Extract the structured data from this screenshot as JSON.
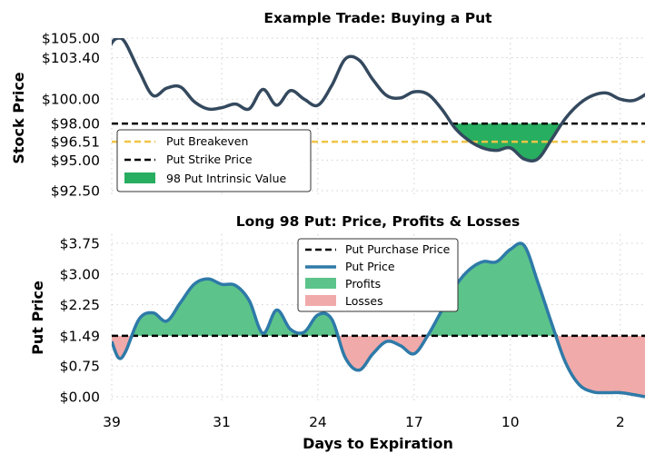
{
  "colors": {
    "stock_line": "#34495e",
    "put_line": "#2e7aa8",
    "intrinsic_fill": "#27ae60",
    "profit_fill": "#5cc48a",
    "loss_fill": "#f0aaaa",
    "breakeven": "#f0c445",
    "strike": "#000000",
    "purchase": "#000000"
  },
  "chart_data": [
    {
      "type": "line",
      "title": "Example Trade: Buying a Put",
      "xlabel": "",
      "ylabel": "Stock Price",
      "ylim": [
        92.5,
        105.0
      ],
      "yticks": [
        92.5,
        95.0,
        96.51,
        98.0,
        100.0,
        103.4,
        105.0
      ],
      "ytick_labels": [
        "$92.50",
        "$95.00",
        "$96.51",
        "$98.00",
        "$100.00",
        "$103.40",
        "$105.00"
      ],
      "x_direction": "days to expiration, decreasing left to right",
      "grid": true,
      "legend_position": "lower-left",
      "series": [
        {
          "name": "",
          "role": "stock_price",
          "x": [
            39.5,
            39,
            38.5,
            38,
            37,
            36,
            35,
            34,
            33,
            32,
            31,
            30,
            29,
            28,
            27,
            26,
            25,
            24,
            23,
            22,
            21,
            20,
            19,
            18,
            17,
            16,
            15,
            14,
            13,
            12,
            11,
            10,
            9,
            8,
            7,
            6,
            5,
            4,
            3,
            2,
            1,
            0
          ],
          "values": [
            103.2,
            104.6,
            105.0,
            104.6,
            102.3,
            100.3,
            100.9,
            101.0,
            99.8,
            99.2,
            99.3,
            99.6,
            99.2,
            100.8,
            99.5,
            100.7,
            100.0,
            99.5,
            101.1,
            103.3,
            103.2,
            101.6,
            100.3,
            100.1,
            100.6,
            100.4,
            99.2,
            97.6,
            96.6,
            96.0,
            95.8,
            96.0,
            95.1,
            95.1,
            96.7,
            98.4,
            99.6,
            100.3,
            100.5,
            100.0,
            99.9,
            100.5
          ]
        }
      ],
      "reference_lines": [
        {
          "name": "Put Breakeven",
          "value": 96.51
        },
        {
          "name": "Put Strike Price",
          "value": 98.0
        }
      ],
      "fill": {
        "name": "98 Put Intrinsic Value",
        "between": "stock price and 98 strike where stock price is below 98"
      }
    },
    {
      "type": "line",
      "title": "Long 98 Put: Price, Profits & Losses",
      "xlabel": "Days to Expiration",
      "ylabel": "Put Price",
      "ylim": [
        0.0,
        3.75
      ],
      "yticks": [
        0.0,
        0.75,
        1.49,
        2.25,
        3.0,
        3.75
      ],
      "ytick_labels": [
        "$0.00",
        "$0.75",
        "$1.49",
        "$2.25",
        "$3.00",
        "$3.75"
      ],
      "xticks": [
        39,
        31,
        24,
        17,
        10,
        2
      ],
      "xtick_labels": [
        "39",
        "31",
        "24",
        "17",
        "10",
        "2"
      ],
      "grid": true,
      "legend_position": "upper-center",
      "series": [
        {
          "name": "Put Price",
          "x": [
            39.0,
            38.5,
            38.0,
            37.0,
            36.0,
            35.0,
            34.0,
            33.0,
            32.0,
            31.0,
            30.0,
            29.0,
            28.0,
            27.0,
            26.0,
            25.0,
            24.0,
            23.0,
            22.0,
            21.0,
            20.0,
            19.0,
            18.0,
            17.0,
            16.0,
            15.0,
            14.0,
            13.0,
            12.0,
            11.0,
            10.0,
            9.0,
            8.0,
            7.0,
            6.0,
            5.0,
            4.0,
            3.0,
            2.0,
            1.0,
            0.2
          ],
          "values": [
            1.35,
            0.95,
            1.1,
            1.9,
            2.05,
            1.85,
            2.3,
            2.75,
            2.88,
            2.75,
            2.72,
            2.35,
            1.55,
            2.12,
            1.65,
            1.58,
            2.0,
            1.9,
            0.95,
            0.65,
            1.05,
            1.35,
            1.25,
            1.05,
            1.5,
            2.1,
            2.7,
            3.1,
            3.3,
            3.3,
            3.6,
            3.7,
            2.8,
            1.8,
            0.85,
            0.3,
            0.12,
            0.1,
            0.1,
            0.05,
            0.0
          ]
        }
      ],
      "reference_lines": [
        {
          "name": "Put Purchase Price",
          "value": 1.49
        }
      ],
      "fills": [
        {
          "name": "Profits",
          "where": "put price above 1.49"
        },
        {
          "name": "Losses",
          "where": "put price below 1.49"
        }
      ]
    }
  ]
}
